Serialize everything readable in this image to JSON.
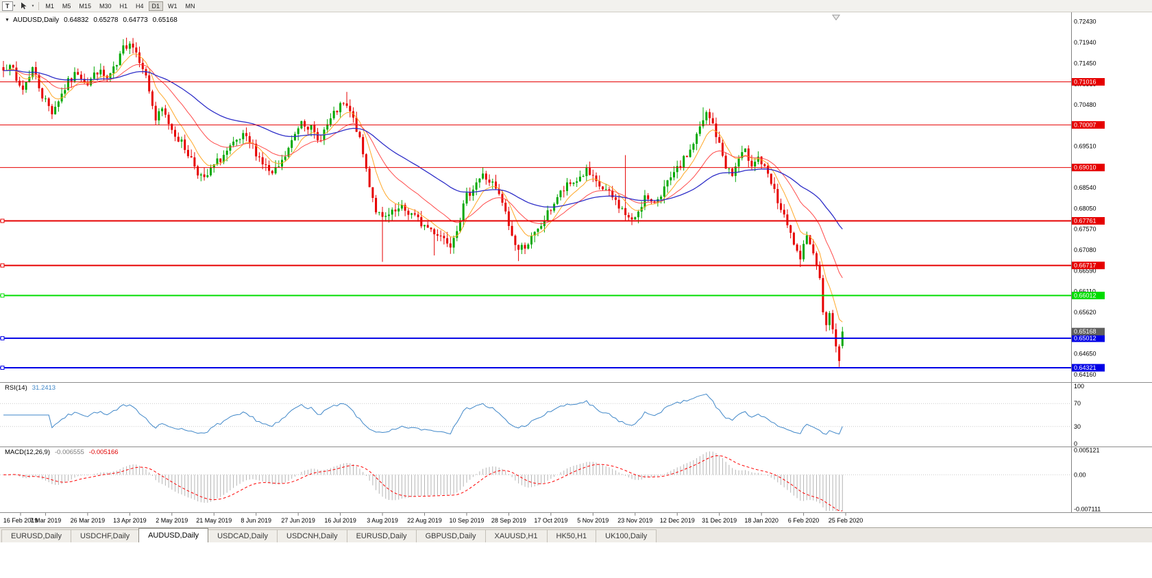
{
  "toolbar": {
    "template_button": "T",
    "timeframes": [
      "M1",
      "M5",
      "M15",
      "M30",
      "H1",
      "H4",
      "D1",
      "W1",
      "MN"
    ],
    "active_timeframe": "D1"
  },
  "chart": {
    "symbol_label": "AUDUSD,Daily",
    "ohlc": {
      "open": "0.64832",
      "high": "0.65278",
      "low": "0.64773",
      "close": "0.65168"
    },
    "price_axis_labels": [
      "0.72430",
      "0.71940",
      "0.71450",
      "0.70960",
      "0.70480",
      "0.69990",
      "0.69510",
      "0.69020",
      "0.68540",
      "0.68050",
      "0.67570",
      "0.67080",
      "0.66590",
      "0.66110",
      "0.65620",
      "0.65140",
      "0.64650",
      "0.64160"
    ],
    "date_axis_labels": [
      "16 Feb 2019",
      "7 Mar 2019",
      "26 Mar 2019",
      "13 Apr 2019",
      "2 May 2019",
      "21 May 2019",
      "8 Jun 2019",
      "27 Jun 2019",
      "16 Jul 2019",
      "3 Aug 2019",
      "22 Aug 2019",
      "10 Sep 2019",
      "28 Sep 2019",
      "17 Oct 2019",
      "5 Nov 2019",
      "23 Nov 2019",
      "12 Dec 2019",
      "31 Dec 2019",
      "18 Jan 2020",
      "6 Feb 2020",
      "25 Feb 2020"
    ],
    "hlines": [
      {
        "label": "0.71016",
        "price": 0.71016,
        "color": "#E60000",
        "width": 1
      },
      {
        "label": "0.70007",
        "price": 0.70007,
        "color": "#E60000",
        "width": 1
      },
      {
        "label": "0.69010",
        "price": 0.6901,
        "color": "#E60000",
        "width": 1
      },
      {
        "label": "0.67761",
        "price": 0.67761,
        "color": "#E60000",
        "width": 2
      },
      {
        "label": "0.66717",
        "price": 0.66717,
        "color": "#E60000",
        "width": 2
      },
      {
        "label": "0.66012",
        "price": 0.66012,
        "color": "#00DC00",
        "width": 2
      },
      {
        "label": "0.65012",
        "price": 0.65012,
        "color": "#0000E6",
        "width": 2
      },
      {
        "label": "0.64321",
        "price": 0.64321,
        "color": "#0000E6",
        "width": 2
      }
    ],
    "current_price_label": "0.65168",
    "current_price": 0.65168
  },
  "rsi_panel": {
    "name_label": "RSI(14)",
    "value_label": "31.2413",
    "value": 31.2413,
    "axis_labels": [
      "100",
      "70",
      "30",
      "0"
    ],
    "level_lines": [
      70,
      30
    ],
    "line_color": "#3E86C8"
  },
  "macd_panel": {
    "name_label": "MACD(12,26,9)",
    "main_value_label": "-0.006555",
    "signal_value_label": "-0.005166",
    "main_value": -0.006555,
    "signal_value": -0.005166,
    "axis_labels": [
      "0.005121",
      "0.00",
      "-0.007111"
    ],
    "axis_values": [
      0.005121,
      0,
      -0.007111
    ],
    "range": {
      "max": 0.0053,
      "min": -0.0075
    },
    "histogram_color": "#B4B4B4",
    "signal_color": "#FF0000"
  },
  "tabs": {
    "items": [
      "EURUSD,Daily",
      "USDCHF,Daily",
      "AUDUSD,Daily",
      "USDCAD,Daily",
      "USDCNH,Daily",
      "EURUSD,Daily",
      "GBPUSD,Daily",
      "XAUUSD,H1",
      "HK50,H1",
      "UK100,Daily"
    ],
    "active_index": 2
  },
  "chart_data": {
    "type": "candlestick",
    "symbol": "AUDUSD",
    "timeframe": "Daily",
    "bars": 260,
    "bars_per_date_tick": 13,
    "price_range": {
      "top": 0.7258,
      "bottom": 0.6408
    },
    "last_bar": {
      "open": 0.64832,
      "high": 0.65278,
      "low": 0.64773,
      "close": 0.65168
    },
    "prev_bar_low": 0.6434,
    "up_color": "#00A800",
    "down_color": "#E60000",
    "rsi_period": 14,
    "macd": [
      12,
      26,
      9
    ],
    "seed": 7,
    "moving_averages": [
      {
        "period": 8,
        "type": "ema",
        "color": "#FFA726"
      },
      {
        "period": 21,
        "type": "ema",
        "color": "#FF4A4A"
      },
      {
        "period": 55,
        "type": "ema",
        "color": "#2E2EC8"
      }
    ],
    "anchors": [
      [
        0,
        0.7128
      ],
      [
        2,
        0.715
      ],
      [
        4,
        0.71
      ],
      [
        6,
        0.7085
      ],
      [
        9,
        0.7135
      ],
      [
        12,
        0.707
      ],
      [
        15,
        0.7032
      ],
      [
        17,
        0.706
      ],
      [
        20,
        0.71
      ],
      [
        23,
        0.7125
      ],
      [
        26,
        0.7098
      ],
      [
        29,
        0.7128
      ],
      [
        32,
        0.7108
      ],
      [
        35,
        0.7138
      ],
      [
        37,
        0.718
      ],
      [
        39,
        0.7198
      ],
      [
        41,
        0.7172
      ],
      [
        43,
        0.714
      ],
      [
        45,
        0.7082
      ],
      [
        47,
        0.7012
      ],
      [
        49,
        0.7035
      ],
      [
        52,
        0.6992
      ],
      [
        55,
        0.6958
      ],
      [
        58,
        0.6922
      ],
      [
        60,
        0.6892
      ],
      [
        62,
        0.687
      ],
      [
        65,
        0.6905
      ],
      [
        68,
        0.693
      ],
      [
        71,
        0.6952
      ],
      [
        74,
        0.6972
      ],
      [
        77,
        0.695
      ],
      [
        80,
        0.6912
      ],
      [
        83,
        0.6882
      ],
      [
        86,
        0.6912
      ],
      [
        89,
        0.696
      ],
      [
        92,
        0.7015
      ],
      [
        95,
        0.6992
      ],
      [
        97,
        0.6962
      ],
      [
        100,
        0.7
      ],
      [
        103,
        0.7035
      ],
      [
        105,
        0.7048
      ],
      [
        107,
        0.703
      ],
      [
        109,
        0.6992
      ],
      [
        111,
        0.6932
      ],
      [
        113,
        0.6862
      ],
      [
        115,
        0.6802
      ],
      [
        117,
        0.6778
      ],
      [
        120,
        0.6792
      ],
      [
        123,
        0.6804
      ],
      [
        126,
        0.6792
      ],
      [
        129,
        0.677
      ],
      [
        132,
        0.6756
      ],
      [
        135,
        0.6742
      ],
      [
        138,
        0.6724
      ],
      [
        140,
        0.6762
      ],
      [
        143,
        0.6832
      ],
      [
        146,
        0.6868
      ],
      [
        148,
        0.6882
      ],
      [
        151,
        0.6862
      ],
      [
        154,
        0.6818
      ],
      [
        157,
        0.674
      ],
      [
        159,
        0.6708
      ],
      [
        162,
        0.6726
      ],
      [
        165,
        0.6752
      ],
      [
        168,
        0.6792
      ],
      [
        171,
        0.6832
      ],
      [
        174,
        0.6856
      ],
      [
        177,
        0.6872
      ],
      [
        180,
        0.6892
      ],
      [
        183,
        0.6862
      ],
      [
        186,
        0.6846
      ],
      [
        189,
        0.6822
      ],
      [
        192,
        0.6792
      ],
      [
        194,
        0.6772
      ],
      [
        196,
        0.6802
      ],
      [
        198,
        0.6832
      ],
      [
        200,
        0.6812
      ],
      [
        203,
        0.6842
      ],
      [
        206,
        0.6872
      ],
      [
        209,
        0.6906
      ],
      [
        212,
        0.6942
      ],
      [
        215,
        0.6992
      ],
      [
        217,
        0.7026
      ],
      [
        219,
        0.7002
      ],
      [
        221,
        0.6952
      ],
      [
        223,
        0.6906
      ],
      [
        225,
        0.6882
      ],
      [
        227,
        0.6922
      ],
      [
        229,
        0.6936
      ],
      [
        231,
        0.6912
      ],
      [
        233,
        0.6926
      ],
      [
        235,
        0.6896
      ],
      [
        237,
        0.6862
      ],
      [
        239,
        0.6822
      ],
      [
        241,
        0.6782
      ],
      [
        243,
        0.6742
      ],
      [
        245,
        0.6706
      ],
      [
        246,
        0.6686
      ],
      [
        247,
        0.6722
      ],
      [
        248,
        0.6742
      ],
      [
        250,
        0.67
      ],
      [
        251,
        0.6672
      ],
      [
        252,
        0.6642
      ],
      [
        253,
        0.6562
      ],
      [
        254,
        0.6532
      ],
      [
        255,
        0.656
      ],
      [
        256,
        0.6522
      ],
      [
        257,
        0.6482
      ],
      [
        258,
        0.6448
      ],
      [
        259,
        0.65168
      ]
    ],
    "spike_highs": [
      [
        38,
        0.7205
      ],
      [
        106,
        0.7078
      ],
      [
        192,
        0.693
      ],
      [
        216,
        0.7042
      ]
    ],
    "spike_lows": [
      [
        117,
        0.668
      ],
      [
        133,
        0.6695
      ],
      [
        159,
        0.6682
      ],
      [
        246,
        0.6668
      ]
    ]
  }
}
